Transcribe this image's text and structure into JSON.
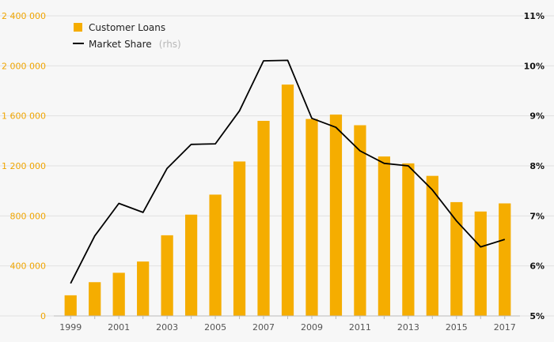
{
  "chart_data": {
    "type": "bar",
    "categories": [
      "1999",
      "2000",
      "2001",
      "2002",
      "2003",
      "2004",
      "2005",
      "2006",
      "2007",
      "2008",
      "2009",
      "2010",
      "2011",
      "2012",
      "2013",
      "2014",
      "2015",
      "2016",
      "2017"
    ],
    "x_tick_labels": [
      "1999",
      "2001",
      "2003",
      "2005",
      "2007",
      "2009",
      "2011",
      "2013",
      "2015",
      "2017"
    ],
    "series": [
      {
        "name": "Customer Loans",
        "type": "bar",
        "axis": "left",
        "color": "#f5ad00",
        "values": [
          165000,
          270000,
          345000,
          435000,
          645000,
          810000,
          970000,
          1235000,
          1560000,
          1850000,
          1575000,
          1610000,
          1525000,
          1275000,
          1220000,
          1120000,
          910000,
          835000,
          900000
        ]
      },
      {
        "name": "Market Share",
        "name_suffix": "(rhs)",
        "type": "line",
        "axis": "right",
        "color": "#000000",
        "values": [
          5.65,
          6.6,
          7.25,
          7.07,
          7.95,
          8.43,
          8.44,
          9.1,
          10.1,
          10.11,
          8.95,
          8.77,
          8.3,
          8.05,
          8.0,
          7.52,
          6.9,
          6.38,
          6.53
        ]
      }
    ],
    "y_left": {
      "ylim": [
        0,
        2400000
      ],
      "ticks": [
        0,
        400000,
        800000,
        1200000,
        1600000,
        2000000,
        2400000
      ],
      "tick_labels": [
        "0",
        "400 000",
        "800 000",
        "1 200 000",
        "1 600 000",
        "2 000 000",
        "2 400 000"
      ],
      "color": "#f0a500"
    },
    "y_right": {
      "ylim": [
        5,
        11
      ],
      "ticks": [
        5,
        6,
        7,
        8,
        9,
        10,
        11
      ],
      "tick_labels": [
        "5%",
        "6%",
        "7%",
        "8%",
        "9%",
        "10%",
        "11%"
      ],
      "color": "#111111"
    },
    "grid": true,
    "legend_position": "top-left"
  }
}
